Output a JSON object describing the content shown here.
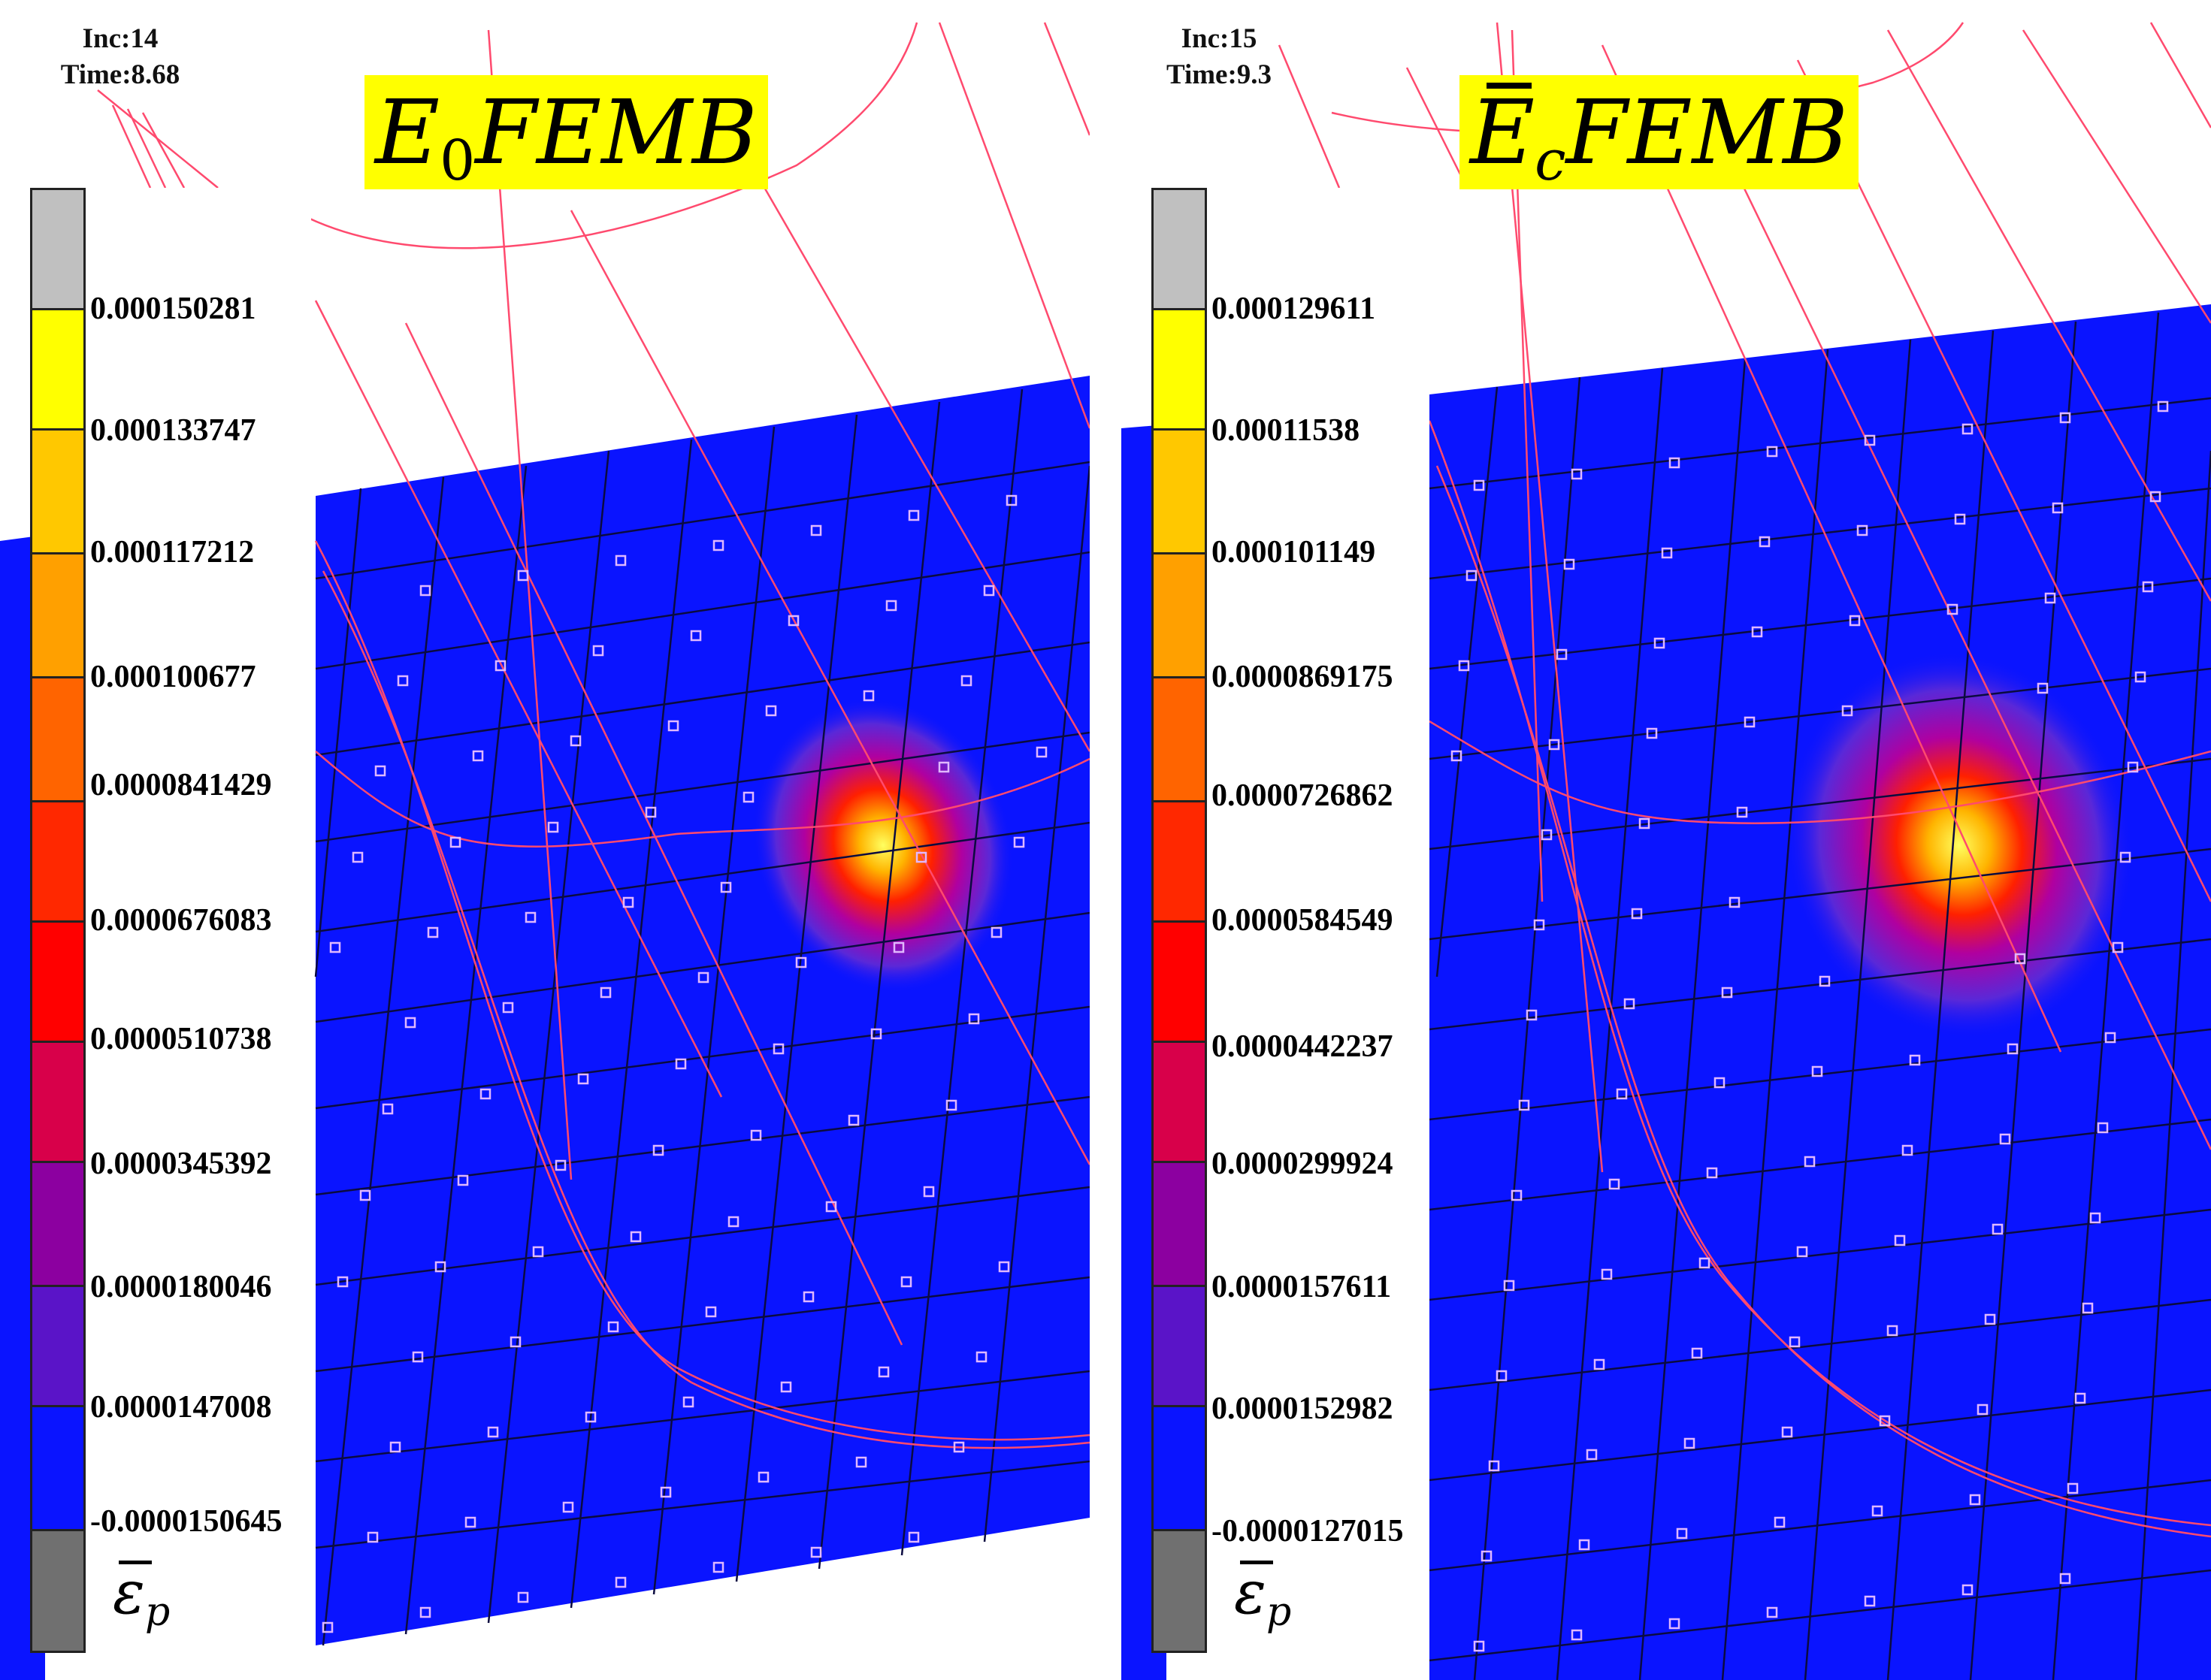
{
  "left_panel": {
    "inc": "Inc:14",
    "time": "Time:8.68",
    "title_main": "E",
    "title_sub": "0",
    "title_rest": "FEMB",
    "legend_labels": [
      "0.000150281",
      "0.000133747",
      "0.000117212",
      "0.000100677",
      "0.0000841429",
      "0.0000676083",
      "0.0000510738",
      "0.0000345392",
      "0.0000180046",
      "0.0000147008",
      "-0.0000150645"
    ],
    "symbol": "ε",
    "symbol_sub": "p"
  },
  "right_panel": {
    "inc": "Inc:15",
    "time": "Time:9.3",
    "title_main": "E",
    "title_sub": "c",
    "title_rest": "FEMB",
    "legend_labels": [
      "0.000129611",
      "0.00011538",
      "0.000101149",
      "0.0000869175",
      "0.0000726862",
      "0.0000584549",
      "0.0000442237",
      "0.0000299924",
      "0.0000157611",
      "0.0000152982",
      "-0.0000127015"
    ],
    "symbol": "ε",
    "symbol_sub": "p"
  },
  "legend_colors": [
    "#c0c0c0",
    "#ffff00",
    "#ffc800",
    "#ffa000",
    "#ff6400",
    "#ff2800",
    "#ff0000",
    "#d8004a",
    "#8c00a0",
    "#5a14c8",
    "#3214e6",
    "#0000ff",
    "#707070"
  ],
  "colors": {
    "mesh_blue": "#0a14ff",
    "contact_line": "#ff4a6e",
    "node_marker": "#e0b8ff"
  }
}
